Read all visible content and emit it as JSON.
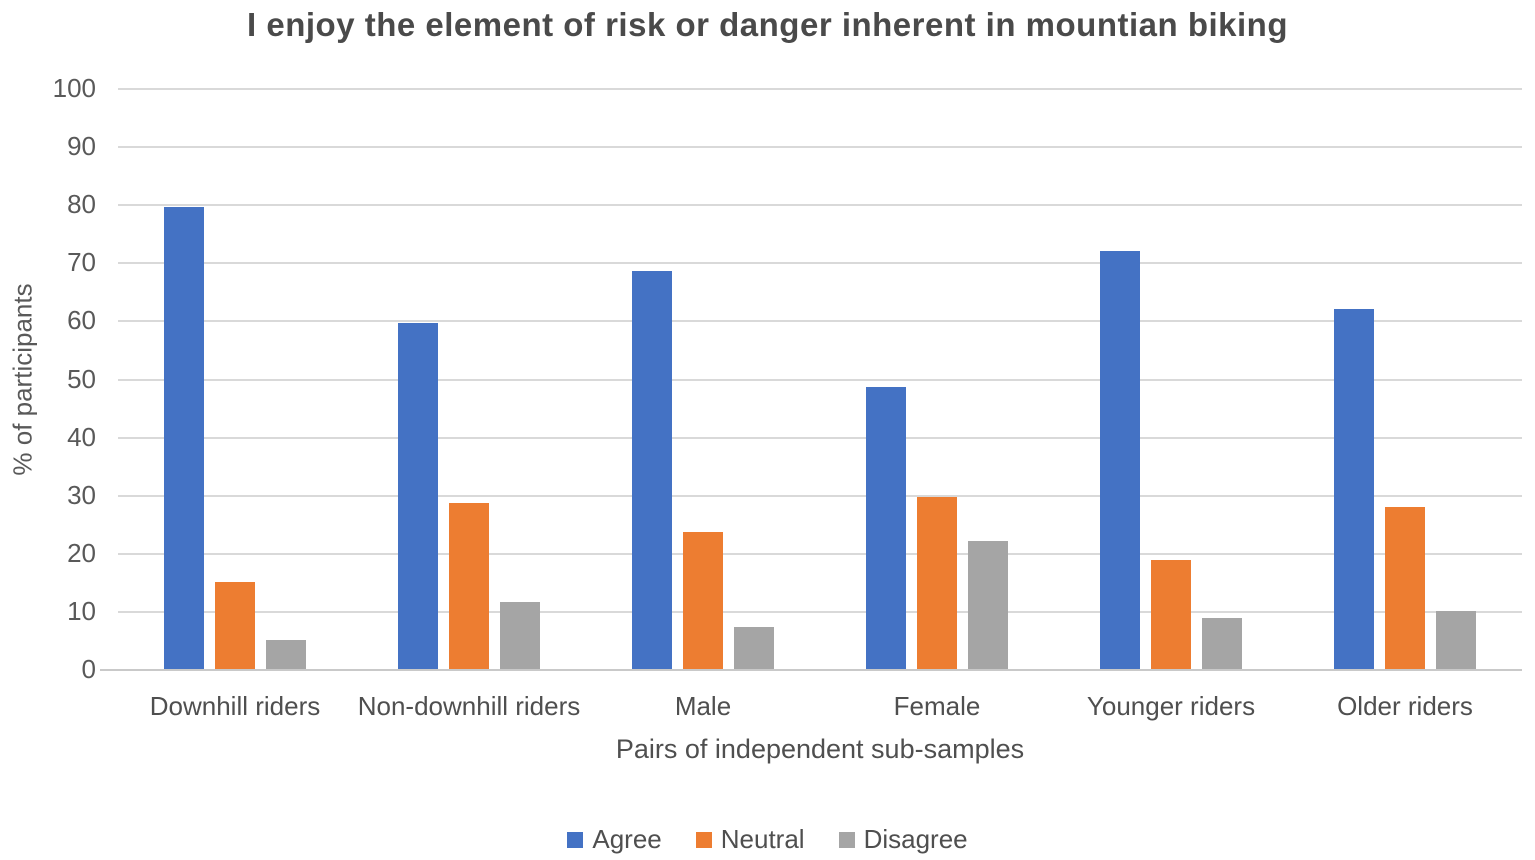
{
  "chart_data": {
    "type": "bar",
    "title": "I enjoy the element of risk or danger inherent in mountian biking",
    "xlabel": "Pairs of independent sub-samples",
    "ylabel": "% of participants",
    "categories": [
      "Downhill riders",
      "Non-downhill riders",
      "Male",
      "Female",
      "Younger riders",
      "Older riders"
    ],
    "series": [
      {
        "name": "Agree",
        "color": "#4472C4",
        "values": [
          79.5,
          59.5,
          68.5,
          48.5,
          72.0,
          62.0
        ]
      },
      {
        "name": "Neutral",
        "color": "#ED7D31",
        "values": [
          15.0,
          28.6,
          23.6,
          29.6,
          18.8,
          27.9
        ]
      },
      {
        "name": "Disagree",
        "color": "#A5A5A5",
        "values": [
          5.0,
          11.5,
          7.3,
          22.0,
          8.8,
          9.9
        ]
      }
    ],
    "ylim": [
      0,
      100
    ],
    "yticks": [
      0,
      10,
      20,
      30,
      40,
      50,
      60,
      70,
      80,
      90,
      100
    ],
    "grid": true,
    "legend_position": "bottom",
    "gridline_color": "#d9d9d9"
  }
}
